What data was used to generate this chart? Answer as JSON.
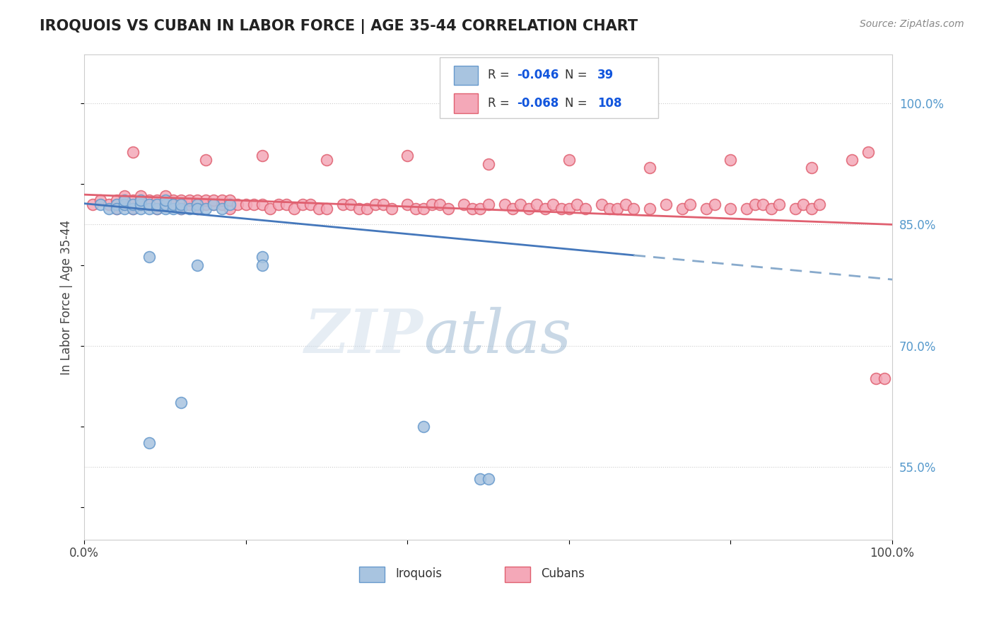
{
  "title": "IROQUOIS VS CUBAN IN LABOR FORCE | AGE 35-44 CORRELATION CHART",
  "source_text": "Source: ZipAtlas.com",
  "ylabel": "In Labor Force | Age 35-44",
  "watermark_zip": "ZIP",
  "watermark_atlas": "atlas",
  "xlim": [
    0.0,
    1.0
  ],
  "ylim": [
    0.46,
    1.06
  ],
  "x_tick_labels": [
    "0.0%",
    "",
    "",
    "",
    "",
    "100.0%"
  ],
  "y_tick_labels_right": [
    "55.0%",
    "70.0%",
    "85.0%",
    "100.0%"
  ],
  "y_ticks_right": [
    0.55,
    0.7,
    0.85,
    1.0
  ],
  "iroquois_color": "#a8c4e0",
  "iroquois_edge_color": "#6699cc",
  "cubans_color": "#f4a8b8",
  "cubans_edge_color": "#e06070",
  "iroquois_trend_color": "#4477bb",
  "iroquois_trend_dash_color": "#88aacc",
  "cubans_trend_color": "#e06070",
  "iroquois_x": [
    0.02,
    0.03,
    0.04,
    0.04,
    0.05,
    0.05,
    0.05,
    0.06,
    0.06,
    0.07,
    0.07,
    0.07,
    0.08,
    0.08,
    0.09,
    0.09,
    0.1,
    0.1,
    0.1,
    0.11,
    0.11,
    0.12,
    0.12,
    0.13,
    0.14,
    0.14,
    0.15,
    0.16,
    0.17,
    0.18,
    0.08,
    0.14,
    0.22,
    0.22,
    0.42,
    0.49,
    0.5,
    0.12,
    0.08
  ],
  "iroquois_y": [
    0.875,
    0.87,
    0.875,
    0.87,
    0.87,
    0.875,
    0.88,
    0.87,
    0.875,
    0.87,
    0.875,
    0.88,
    0.87,
    0.875,
    0.87,
    0.875,
    0.87,
    0.875,
    0.88,
    0.87,
    0.875,
    0.87,
    0.875,
    0.87,
    0.875,
    0.87,
    0.87,
    0.875,
    0.87,
    0.875,
    0.81,
    0.8,
    0.81,
    0.8,
    0.6,
    0.535,
    0.535,
    0.63,
    0.58
  ],
  "cubans_x": [
    0.01,
    0.02,
    0.03,
    0.04,
    0.04,
    0.05,
    0.05,
    0.06,
    0.06,
    0.07,
    0.07,
    0.08,
    0.08,
    0.09,
    0.09,
    0.1,
    0.1,
    0.11,
    0.11,
    0.12,
    0.12,
    0.13,
    0.13,
    0.14,
    0.14,
    0.15,
    0.15,
    0.16,
    0.16,
    0.17,
    0.17,
    0.18,
    0.18,
    0.19,
    0.2,
    0.21,
    0.22,
    0.23,
    0.24,
    0.25,
    0.26,
    0.27,
    0.28,
    0.29,
    0.3,
    0.32,
    0.33,
    0.34,
    0.35,
    0.36,
    0.37,
    0.38,
    0.4,
    0.41,
    0.42,
    0.43,
    0.44,
    0.45,
    0.47,
    0.48,
    0.49,
    0.5,
    0.52,
    0.53,
    0.54,
    0.55,
    0.56,
    0.57,
    0.58,
    0.59,
    0.6,
    0.61,
    0.62,
    0.64,
    0.65,
    0.66,
    0.67,
    0.68,
    0.7,
    0.72,
    0.74,
    0.75,
    0.77,
    0.78,
    0.8,
    0.82,
    0.83,
    0.84,
    0.85,
    0.86,
    0.88,
    0.89,
    0.9,
    0.91,
    0.06,
    0.15,
    0.22,
    0.3,
    0.4,
    0.5,
    0.6,
    0.7,
    0.8,
    0.9,
    0.95,
    0.97,
    0.98,
    0.99
  ],
  "cubans_y": [
    0.875,
    0.88,
    0.875,
    0.87,
    0.88,
    0.875,
    0.885,
    0.88,
    0.87,
    0.875,
    0.885,
    0.875,
    0.88,
    0.87,
    0.88,
    0.875,
    0.885,
    0.875,
    0.88,
    0.87,
    0.88,
    0.875,
    0.88,
    0.87,
    0.88,
    0.875,
    0.88,
    0.875,
    0.88,
    0.875,
    0.88,
    0.87,
    0.88,
    0.875,
    0.875,
    0.875,
    0.875,
    0.87,
    0.875,
    0.875,
    0.87,
    0.875,
    0.875,
    0.87,
    0.87,
    0.875,
    0.875,
    0.87,
    0.87,
    0.875,
    0.875,
    0.87,
    0.875,
    0.87,
    0.87,
    0.875,
    0.875,
    0.87,
    0.875,
    0.87,
    0.87,
    0.875,
    0.875,
    0.87,
    0.875,
    0.87,
    0.875,
    0.87,
    0.875,
    0.87,
    0.87,
    0.875,
    0.87,
    0.875,
    0.87,
    0.87,
    0.875,
    0.87,
    0.87,
    0.875,
    0.87,
    0.875,
    0.87,
    0.875,
    0.87,
    0.87,
    0.875,
    0.875,
    0.87,
    0.875,
    0.87,
    0.875,
    0.87,
    0.875,
    0.94,
    0.93,
    0.935,
    0.93,
    0.935,
    0.925,
    0.93,
    0.92,
    0.93,
    0.92,
    0.93,
    0.94,
    0.66,
    0.66
  ],
  "iq_trend_x0": 0.0,
  "iq_trend_y0": 0.876,
  "iq_trend_x1": 0.68,
  "iq_trend_y1": 0.812,
  "iq_trend_xd0": 0.68,
  "iq_trend_yd0": 0.812,
  "iq_trend_xd1": 1.0,
  "iq_trend_yd1": 0.782,
  "cu_trend_x0": 0.0,
  "cu_trend_y0": 0.887,
  "cu_trend_x1": 1.0,
  "cu_trend_y1": 0.85
}
